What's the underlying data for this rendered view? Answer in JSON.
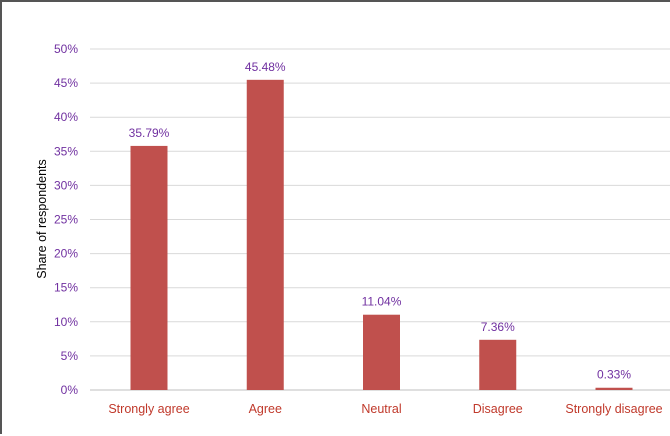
{
  "chart_data": {
    "type": "bar",
    "categories": [
      "Strongly agree",
      "Agree",
      "Neutral",
      "Disagree",
      "Strongly disagree"
    ],
    "values": [
      35.79,
      45.48,
      11.04,
      7.36,
      0.33
    ],
    "data_labels": [
      "35.79%",
      "45.48%",
      "11.04%",
      "7.36%",
      "0.33%"
    ],
    "title": "",
    "xlabel": "",
    "ylabel": "Share of respondents",
    "ylim": [
      0,
      50
    ],
    "yticks": [
      0,
      5,
      10,
      15,
      20,
      25,
      30,
      35,
      40,
      45,
      50
    ],
    "ytick_labels": [
      "0%",
      "5%",
      "10%",
      "15%",
      "20%",
      "25%",
      "30%",
      "35%",
      "40%",
      "45%",
      "50%"
    ],
    "grid": true,
    "legend": "none",
    "colors": {
      "bar": "#c0504d",
      "tick_y": "#7030a0",
      "tick_x": "#c0392b",
      "data_label": "#7030a0",
      "grid": "#d9d9d9"
    }
  }
}
